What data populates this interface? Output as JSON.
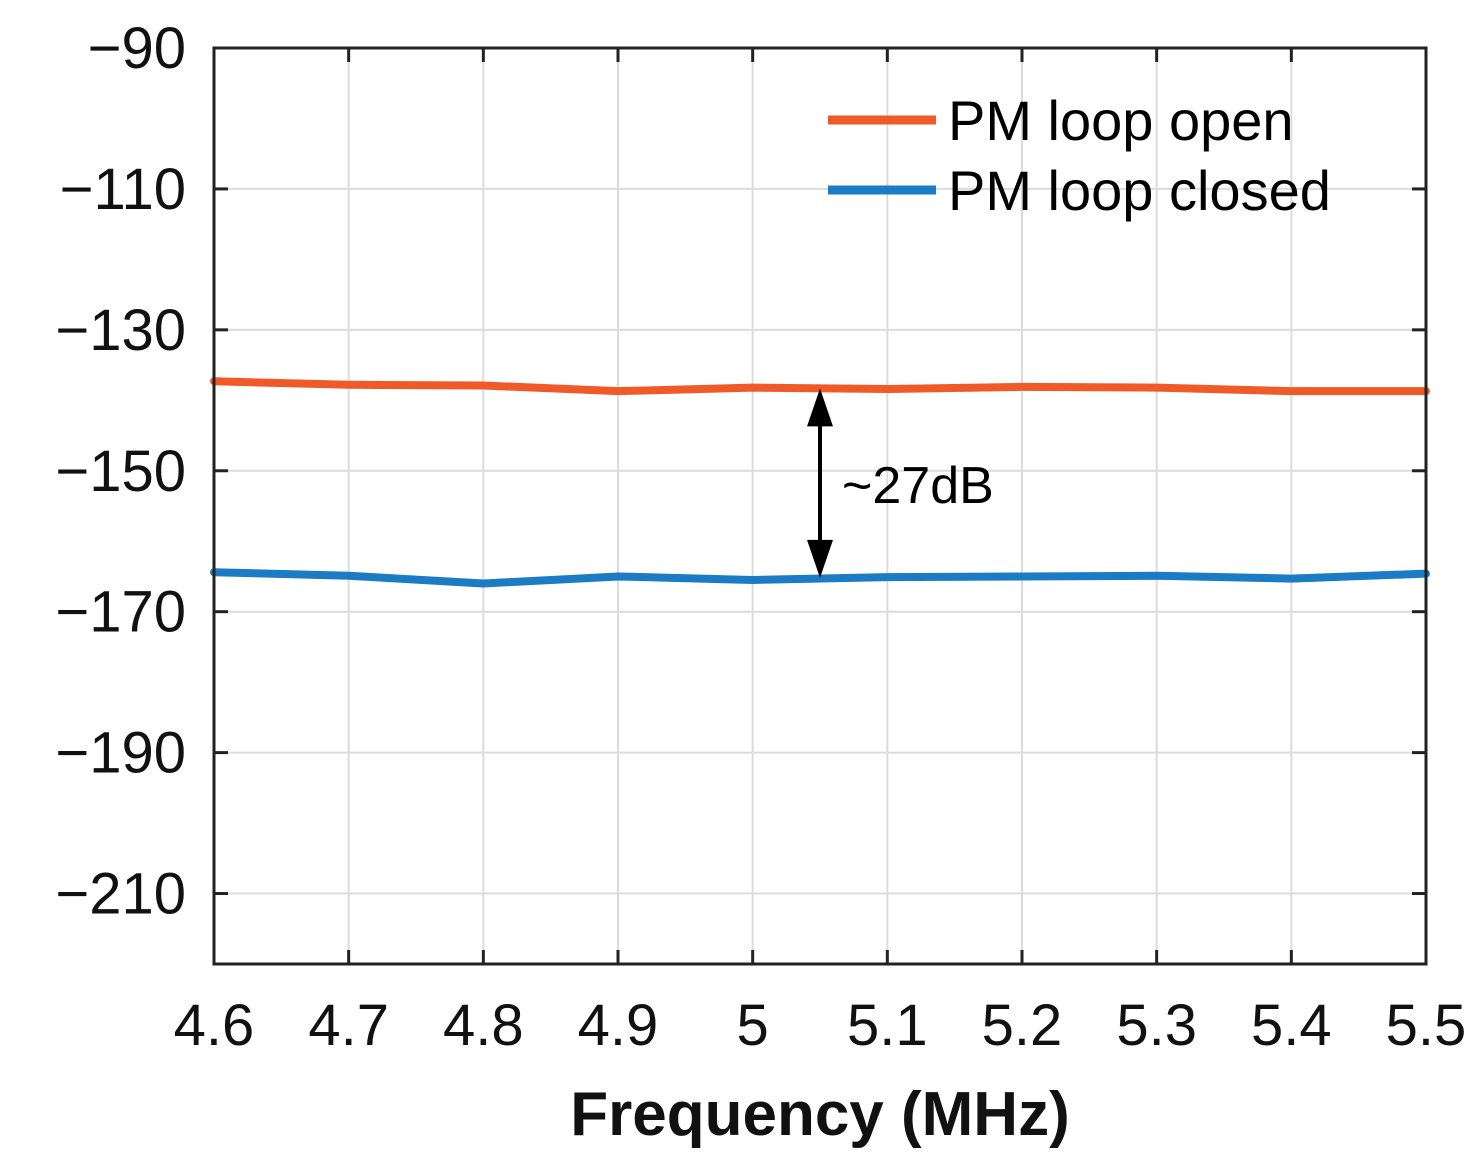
{
  "chart_data": {
    "type": "line",
    "title": "",
    "xlabel": "Frequency (MHz)",
    "ylabel": "",
    "xlim": [
      4.6,
      5.5
    ],
    "ylim": [
      -220,
      -90
    ],
    "xticks": [
      4.6,
      4.7,
      4.8,
      4.9,
      5.0,
      5.1,
      5.2,
      5.3,
      5.4,
      5.5
    ],
    "xtick_labels": [
      "4.6",
      "4.7",
      "4.8",
      "4.9",
      "5",
      "5.1",
      "5.2",
      "5.3",
      "5.4",
      "5.5"
    ],
    "yticks": [
      -90,
      -110,
      -130,
      -150,
      -170,
      -190,
      -210
    ],
    "ytick_labels": [
      "−90",
      "−110",
      "−130",
      "−150",
      "−170",
      "−190",
      "−210"
    ],
    "grid": true,
    "legend_position": "top-right",
    "series": [
      {
        "name": "PM loop open",
        "color": "#f05a28",
        "x": [
          4.6,
          4.7,
          4.8,
          4.9,
          5.0,
          5.1,
          5.2,
          5.3,
          5.4,
          5.5
        ],
        "y": [
          -137.3,
          -137.8,
          -137.9,
          -138.7,
          -138.2,
          -138.4,
          -138.1,
          -138.2,
          -138.7,
          -138.7
        ]
      },
      {
        "name": "PM loop closed",
        "color": "#1b7bc4",
        "x": [
          4.6,
          4.7,
          4.8,
          4.9,
          5.0,
          5.1,
          5.2,
          5.3,
          5.4,
          5.5
        ],
        "y": [
          -164.4,
          -164.9,
          -166.0,
          -165.0,
          -165.5,
          -165.1,
          -165.0,
          -164.9,
          -165.3,
          -164.6
        ]
      }
    ],
    "annotations": [
      {
        "text": "~27dB",
        "type": "double-arrow",
        "x": 5.05,
        "y_from": -138.3,
        "y_to": -165.2
      }
    ]
  }
}
